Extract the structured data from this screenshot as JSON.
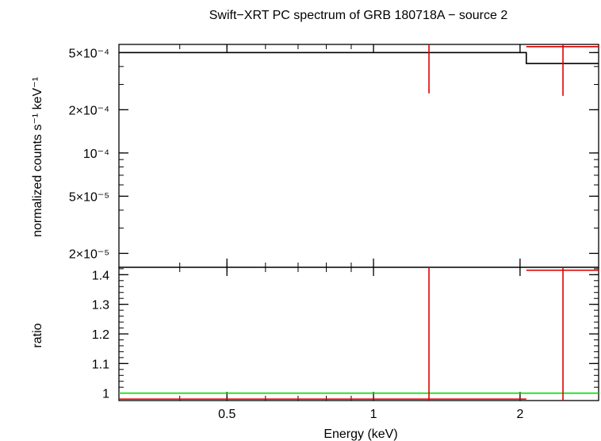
{
  "chart_data": {
    "title": "Swift−XRT PC spectrum of GRB 180718A − source 2",
    "xlabel": "Energy (keV)",
    "xscale": "log",
    "xlim": [
      0.3,
      2.9
    ],
    "x_ticks": [
      {
        "value": 0.5,
        "label": "0.5"
      },
      {
        "value": 1,
        "label": "1"
      },
      {
        "value": 2,
        "label": "2"
      }
    ],
    "panels": [
      {
        "name": "spectrum",
        "type": "line",
        "ylabel": "normalized counts s⁻¹ keV⁻¹",
        "yscale": "log",
        "ylim": [
          1.6e-05,
          0.00057
        ],
        "y_ticks": [
          {
            "value": 0.0005,
            "label": "5×10⁻⁴"
          },
          {
            "value": 0.0002,
            "label": "2×10⁻⁴"
          },
          {
            "value": 0.0001,
            "label": "10⁻⁴"
          },
          {
            "value": 5e-05,
            "label": "5×10⁻⁵"
          },
          {
            "value": 2e-05,
            "label": "2×10⁻⁵"
          }
        ],
        "data_points": [
          {
            "x": 1.3,
            "y_low": 0.00026,
            "y_high": 0.00057,
            "color": "#dd0000"
          },
          {
            "x": 2.45,
            "x_low": 2.06,
            "x_high": 2.9,
            "y": 0.00055,
            "y_low": 0.00025,
            "y_high": 0.00057,
            "color": "#dd0000"
          }
        ],
        "model": [
          {
            "x_low": 0.3,
            "x_high": 2.06,
            "y": 0.0005
          },
          {
            "x_low": 2.06,
            "x_high": 2.9,
            "y": 0.00042
          }
        ],
        "model_color": "#000000"
      },
      {
        "name": "ratio",
        "type": "line",
        "ylabel": "ratio",
        "yscale": "linear",
        "ylim": [
          0.975,
          1.425
        ],
        "y_ticks": [
          {
            "value": 1.4,
            "label": "1.4"
          },
          {
            "value": 1.3,
            "label": "1.3"
          },
          {
            "value": 1.2,
            "label": "1.2"
          },
          {
            "value": 1.1,
            "label": "1.1"
          },
          {
            "value": 1,
            "label": "1"
          }
        ],
        "data_points": [
          {
            "x": 1.3,
            "x_low": 0.3,
            "x_high": 2.06,
            "y": 0.98,
            "y_low": 0.975,
            "y_high": 1.425,
            "color": "#dd0000"
          },
          {
            "x": 2.45,
            "x_low": 2.06,
            "x_high": 2.9,
            "y": 1.415,
            "y_low": 0.975,
            "y_high": 1.425,
            "color": "#dd0000"
          }
        ],
        "reference_line": {
          "y": 1,
          "color": "#00dd00"
        }
      }
    ]
  }
}
